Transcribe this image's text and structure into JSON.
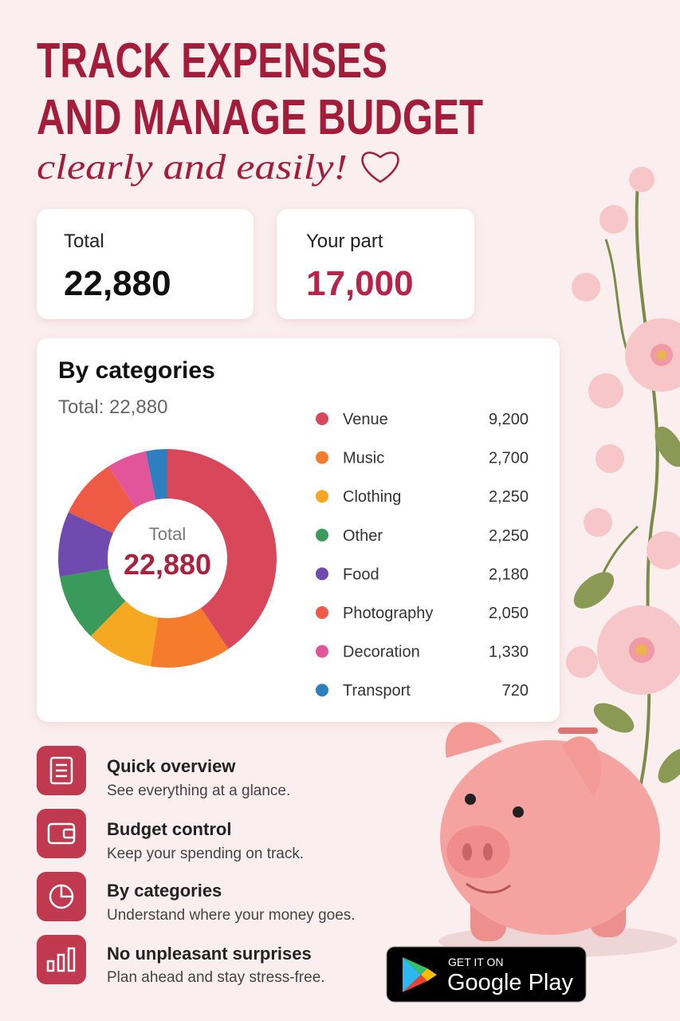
{
  "header": {
    "title_lines": [
      "TRACK EXPENSES",
      "AND MANAGE BUDGET"
    ],
    "tagline": "clearly and easily!"
  },
  "summary": [
    {
      "label": "Total",
      "value": "22,880"
    },
    {
      "label": "Your part",
      "value": "17,000"
    }
  ],
  "chart_data": {
    "type": "donut",
    "title": "By categories",
    "subtitle": "Total: 22,880",
    "center_label": "Total",
    "center_value": "22,880",
    "categories": [
      "Venue",
      "Music",
      "Clothing",
      "Other",
      "Food",
      "Photography",
      "Decoration",
      "Transport"
    ],
    "values": [
      9200,
      2700,
      2250,
      2250,
      2180,
      2050,
      1330,
      720
    ],
    "value_labels": [
      "9,200",
      "2,700",
      "2,250",
      "2,250",
      "2,180",
      "2,050",
      "1,330",
      "720"
    ],
    "colors": [
      "#d9475a",
      "#f47c2c",
      "#f7a823",
      "#3a9a5b",
      "#6f4bb0",
      "#ee5a45",
      "#e2559a",
      "#2f7fbf"
    ]
  },
  "features": [
    {
      "title": "Quick overview",
      "text": "See everything at a glance."
    },
    {
      "title": "Budget control",
      "text": "Keep your spending on track."
    },
    {
      "title": "By categories",
      "text": "Understand where your money goes."
    },
    {
      "title": "No unpleasant surprises",
      "text": "Plan ahead and stay stress-free."
    }
  ],
  "store_badge": {
    "line1": "GET IT ON",
    "line2": "Google Play"
  }
}
